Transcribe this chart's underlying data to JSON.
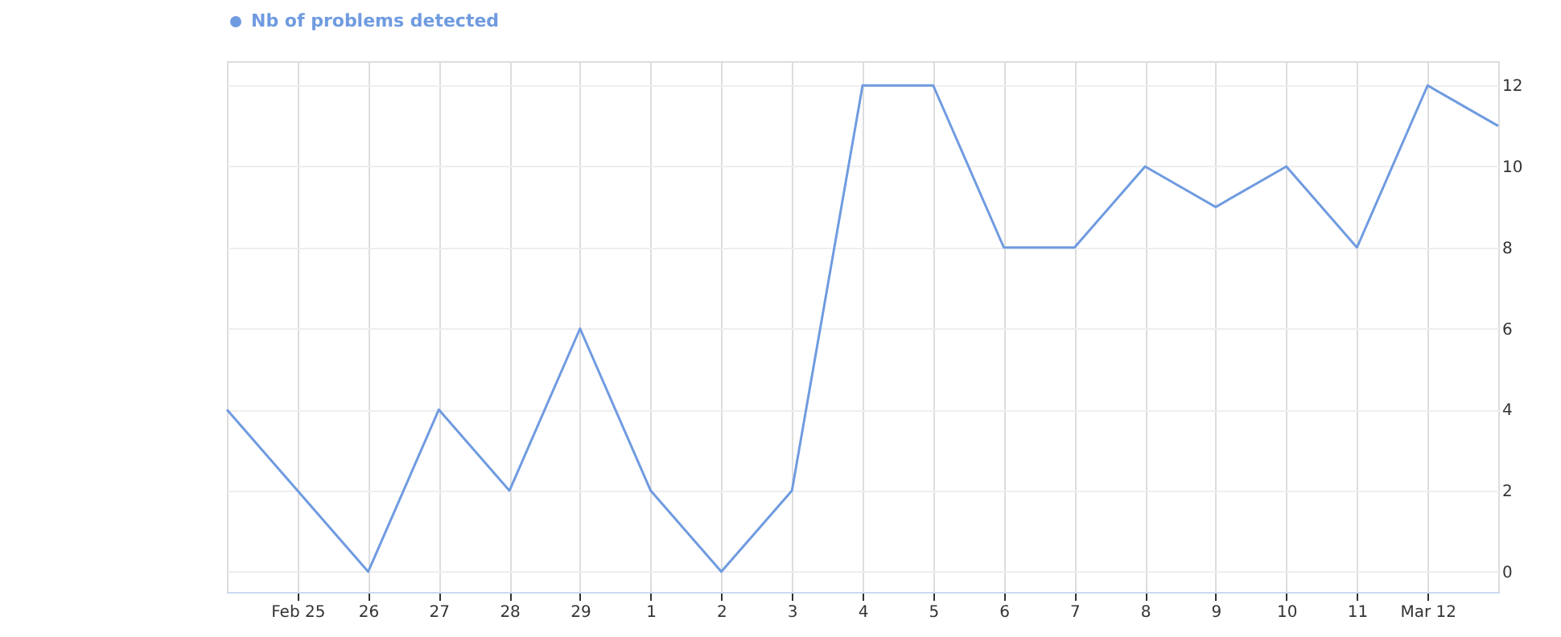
{
  "chart_data": {
    "type": "line",
    "x": [
      "--02-24",
      "--02-25",
      "--02-26",
      "--02-27",
      "--02-28",
      "--02-29",
      "--03-01",
      "--03-02",
      "--03-03",
      "--03-04",
      "--03-05",
      "--03-06",
      "--03-07",
      "--03-08",
      "--03-09",
      "--03-10",
      "--03-11",
      "--03-12",
      "--03-13"
    ],
    "series": [
      {
        "name": "Nb of problems detected",
        "color": "#6f9be0",
        "values": [
          4,
          2,
          0,
          4,
          2,
          6,
          2,
          0,
          2,
          12,
          12,
          8,
          8,
          10,
          9,
          10,
          8,
          12,
          11
        ]
      }
    ],
    "xlim": [
      "--02-24",
      "--03-13"
    ],
    "xticks": [
      {
        "value": "--02-25",
        "label": "Feb 25"
      },
      {
        "value": "--02-26",
        "label": "26"
      },
      {
        "value": "--02-27",
        "label": "27"
      },
      {
        "value": "--02-28",
        "label": "28"
      },
      {
        "value": "--02-29",
        "label": "29"
      },
      {
        "value": "--03-01",
        "label": "1"
      },
      {
        "value": "--03-02",
        "label": "2"
      },
      {
        "value": "--03-03",
        "label": "3"
      },
      {
        "value": "--03-04",
        "label": "4"
      },
      {
        "value": "--03-05",
        "label": "5"
      },
      {
        "value": "--03-06",
        "label": "6"
      },
      {
        "value": "--03-07",
        "label": "7"
      },
      {
        "value": "--03-08",
        "label": "8"
      },
      {
        "value": "--03-09",
        "label": "9"
      },
      {
        "value": "--03-10",
        "label": "10"
      },
      {
        "value": "--03-11",
        "label": "11"
      },
      {
        "value": "--03-12",
        "label": "Mar 12"
      }
    ],
    "ylim": [
      -0.5,
      12.6
    ],
    "yticks": [
      0,
      2,
      4,
      6,
      8,
      10,
      12
    ],
    "grid": true,
    "legend": "top",
    "marker": "none",
    "line_style": "solid"
  }
}
